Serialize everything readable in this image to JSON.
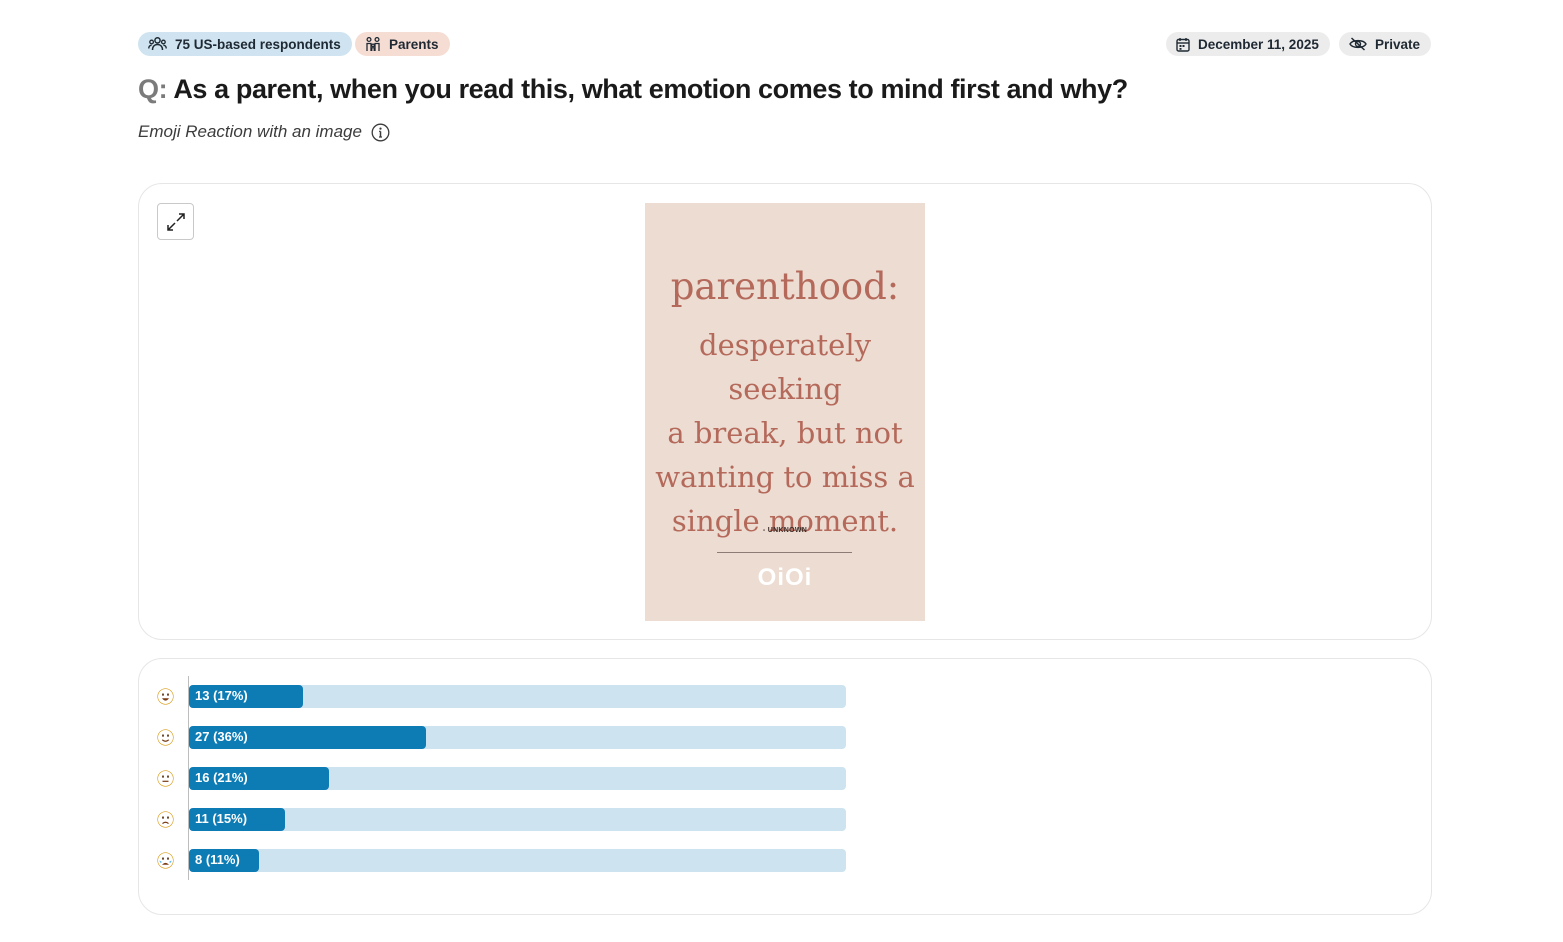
{
  "header": {
    "respondents": "75 US-based respondents",
    "audience": "Parents",
    "date": "December 11, 2025",
    "visibility": "Private"
  },
  "question": {
    "prefix": "Q:",
    "text": "As a parent, when you read this, what emotion comes to mind first and why?",
    "type": "Emoji Reaction with an image"
  },
  "image": {
    "heading": "parenthood:",
    "line1": "desperately seeking",
    "line2": "a break, but not",
    "line3": "wanting to miss a",
    "line4": "single moment.",
    "attribution": "- UNKNOWN",
    "logo": "OiOi",
    "bg_color": "#ecdcd2",
    "text_color": "#b4695a"
  },
  "chart_data": {
    "type": "bar",
    "orientation": "horizontal",
    "categories": [
      "very happy",
      "happy",
      "neutral",
      "sad",
      "crying"
    ],
    "values": [
      13,
      27,
      16,
      11,
      8
    ],
    "percents": [
      17,
      36,
      21,
      15,
      11
    ],
    "labels": [
      "13 (17%)",
      "27 (36%)",
      "16 (21%)",
      "11 (15%)",
      "8 (11%)"
    ],
    "total": 75,
    "fill_color": "#0d7bb4",
    "track_color": "#cde3ef"
  }
}
